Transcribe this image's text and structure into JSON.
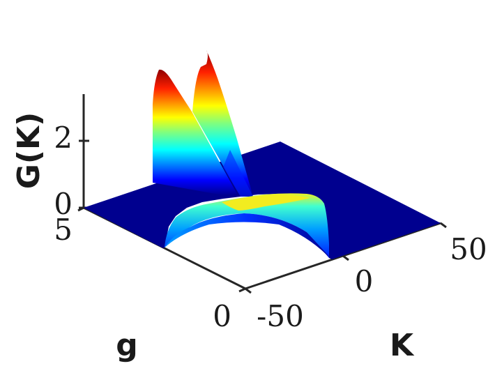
{
  "chart_data": {
    "type": "surface",
    "title": "",
    "colormap": "jet",
    "xlabel": "K",
    "ylabel": "g",
    "zlabel": "G(K)",
    "x_range": [
      -50,
      50
    ],
    "y_range": [
      0,
      5
    ],
    "z_range": [
      0,
      3.4
    ],
    "x_ticks": [
      "-50",
      "0",
      "50"
    ],
    "y_ticks": [
      "0",
      "5"
    ],
    "z_ticks": [
      "0",
      "2"
    ],
    "grid": false,
    "features": [
      {
        "name": "ridge",
        "K": -25,
        "g_from": 5,
        "g_to": 2.5,
        "peak_G": 3.2
      },
      {
        "name": "ridge",
        "K": -12,
        "g_from": 5,
        "g_to": 2.5,
        "peak_G": 3.4
      },
      {
        "name": "arch",
        "K_from": -32,
        "K_to": 22,
        "g": 2.5,
        "peak_G": 1.0
      }
    ]
  }
}
